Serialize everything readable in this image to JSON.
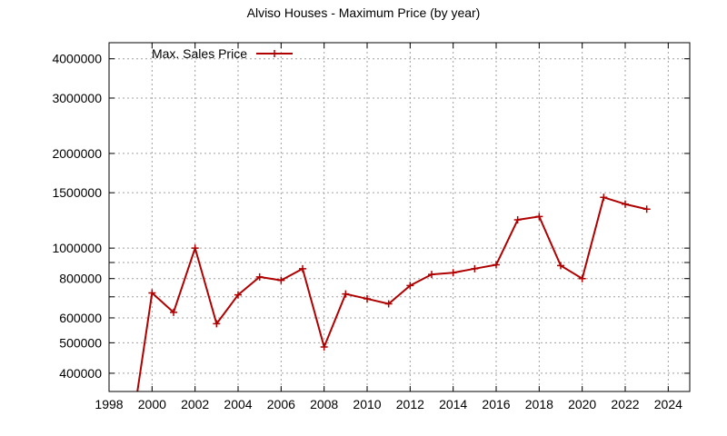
{
  "chart_data": {
    "type": "line",
    "title": "Alviso Houses - Maximum Price (by year)",
    "xlabel": "",
    "ylabel": "",
    "y_scale": "log",
    "xlim": [
      1998,
      2025
    ],
    "ylim": [
      350000,
      4500000
    ],
    "x_ticks": [
      1998,
      2000,
      2002,
      2004,
      2006,
      2008,
      2010,
      2012,
      2014,
      2016,
      2018,
      2020,
      2022,
      2024
    ],
    "x_tick_labels": [
      "1998",
      "2000",
      "2002",
      "2004",
      "2006",
      "2008",
      "2010",
      "2012",
      "2014",
      "2016",
      "2018",
      "2020",
      "2022",
      "2024"
    ],
    "y_ticks": [
      400000,
      500000,
      600000,
      800000,
      1000000,
      1500000,
      2000000,
      3000000,
      4000000
    ],
    "y_tick_labels": [
      "400000",
      "500000",
      "600000",
      "800000",
      "1000000",
      "1500000",
      "2000000",
      "3000000",
      "4000000"
    ],
    "y_grid_extra": [
      700000,
      900000
    ],
    "grid": true,
    "legend_position": "top-left",
    "series": [
      {
        "name": "Max. Sales Price",
        "color": "#b00000",
        "marker": "plus",
        "x": [
          1999,
          2000,
          2001,
          2002,
          2003,
          2004,
          2005,
          2006,
          2007,
          2008,
          2009,
          2010,
          2011,
          2012,
          2013,
          2014,
          2015,
          2016,
          2017,
          2018,
          2019,
          2020,
          2021,
          2022,
          2023
        ],
        "y": [
          250000,
          720000,
          625000,
          1000000,
          575000,
          710000,
          810000,
          790000,
          860000,
          485000,
          715000,
          690000,
          665000,
          760000,
          825000,
          835000,
          860000,
          885000,
          1230000,
          1260000,
          880000,
          800000,
          1450000,
          1380000,
          1330000
        ],
        "line_clip_start": 1999.15
      }
    ]
  }
}
